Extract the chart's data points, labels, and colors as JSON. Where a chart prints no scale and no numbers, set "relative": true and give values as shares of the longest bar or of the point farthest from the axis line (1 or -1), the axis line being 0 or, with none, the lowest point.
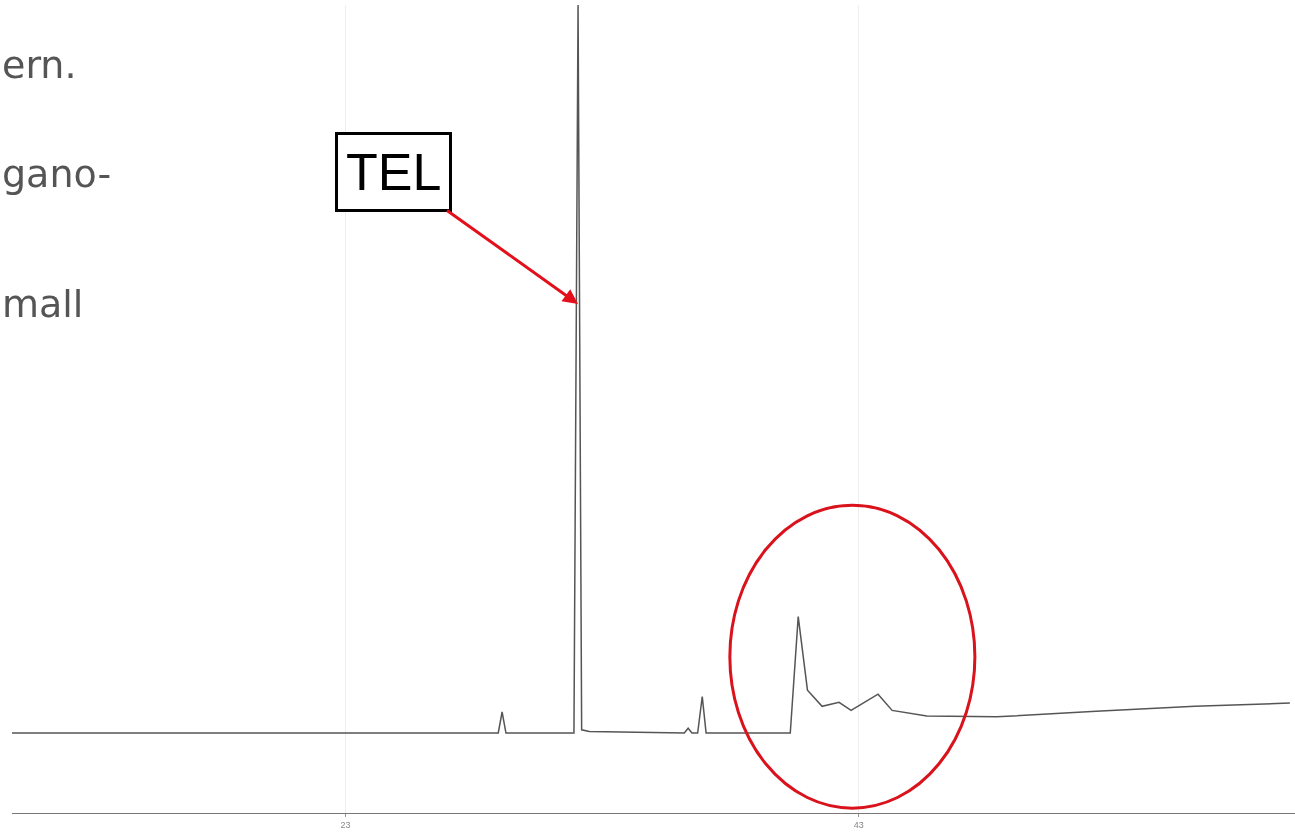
{
  "chart_data": {
    "type": "line",
    "relative": true,
    "x": [
      10,
      28.95,
      29.1,
      29.25,
      31.9,
      32.06,
      32.2,
      32.5,
      36.2,
      36.35,
      36.5,
      36.72,
      36.9,
      37.05,
      40.33,
      40.64,
      41.0,
      41.57,
      42.23,
      42.7,
      43.75,
      44.3,
      45.65,
      48.37,
      52.25,
      56.1,
      59.8
    ],
    "series": [
      {
        "color": "#555555",
        "values": [
          0.099,
          0.099,
          0.125,
          0.099,
          0.099,
          1.0,
          0.103,
          0.101,
          0.099,
          0.105,
          0.099,
          0.099,
          0.144,
          0.099,
          0.099,
          0.243,
          0.152,
          0.132,
          0.137,
          0.127,
          0.147,
          0.127,
          0.12,
          0.119,
          0.126,
          0.132,
          0.136
        ]
      }
    ],
    "xlim": [
      10,
      60
    ],
    "xticks": [
      23,
      43
    ],
    "grid": "x",
    "marker": "none",
    "line_style": "solid",
    "annotations": [
      "ern.",
      "gano-",
      "mall",
      {
        "text": "TEL",
        "x": 32.06,
        "y": 0.63
      }
    ]
  }
}
